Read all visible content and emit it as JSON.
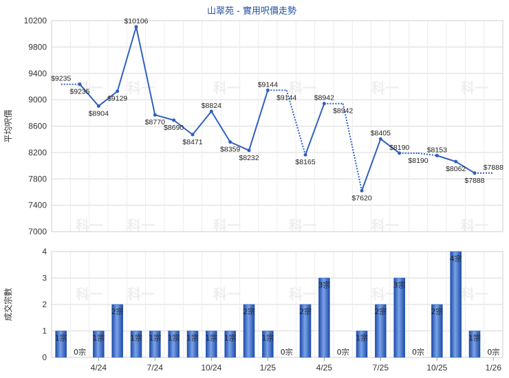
{
  "chart_data": [
    {
      "type": "line",
      "title": "山翠苑 - 實用呎價走勢",
      "ylabel": "平均呎價",
      "ylim": [
        7000,
        10200
      ],
      "yticks": [
        7000,
        7400,
        7800,
        8200,
        8600,
        9000,
        9400,
        9800,
        10200
      ],
      "grid": true,
      "line_color": "#2f5fbf",
      "points": [
        {
          "label": "$9235",
          "value": 9235,
          "filled": false
        },
        {
          "label": "$9235",
          "value": 9235,
          "filled": true
        },
        {
          "label": "$8904",
          "value": 8904,
          "filled": true
        },
        {
          "label": "$9129",
          "value": 9129,
          "filled": true
        },
        {
          "label": "$10106",
          "value": 10106,
          "filled": true
        },
        {
          "label": "$8770",
          "value": 8770,
          "filled": true
        },
        {
          "label": "$8690",
          "value": 8690,
          "filled": true
        },
        {
          "label": "$8471",
          "value": 8471,
          "filled": true
        },
        {
          "label": "$8824",
          "value": 8824,
          "filled": true
        },
        {
          "label": "$8359",
          "value": 8359,
          "filled": true
        },
        {
          "label": "$8232",
          "value": 8232,
          "filled": true
        },
        {
          "label": "$9144",
          "value": 9144,
          "filled": true
        },
        {
          "label": "$9144",
          "value": 9144,
          "filled": false
        },
        {
          "label": "$8165",
          "value": 8165,
          "filled": true
        },
        {
          "label": "$8942",
          "value": 8942,
          "filled": true
        },
        {
          "label": "$8942",
          "value": 8942,
          "filled": false
        },
        {
          "label": "$7620",
          "value": 7620,
          "filled": true
        },
        {
          "label": "$8405",
          "value": 8405,
          "filled": true
        },
        {
          "label": "$8190",
          "value": 8190,
          "filled": true
        },
        {
          "label": "$8190",
          "value": 8190,
          "filled": false
        },
        {
          "label": "$8153",
          "value": 8153,
          "filled": true
        },
        {
          "label": "$8062",
          "value": 8062,
          "filled": true
        },
        {
          "label": "$7888",
          "value": 7888,
          "filled": true
        },
        {
          "label": "$7888",
          "value": 7888,
          "filled": false
        }
      ]
    },
    {
      "type": "bar",
      "ylabel": "成交宗數",
      "ylim": [
        0,
        4
      ],
      "yticks": [
        0,
        1,
        2,
        3,
        4
      ],
      "grid": true,
      "bar_color": "#2f5fbf",
      "values": [
        1,
        0,
        1,
        2,
        1,
        1,
        1,
        1,
        1,
        1,
        2,
        1,
        0,
        2,
        3,
        0,
        1,
        2,
        3,
        0,
        2,
        4,
        1,
        0
      ],
      "value_labels": [
        "1宗",
        "0宗",
        "1宗",
        "2宗",
        "1宗",
        "1宗",
        "1宗",
        "1宗",
        "1宗",
        "1宗",
        "2宗",
        "1宗",
        "0宗",
        "2宗",
        "3宗",
        "0宗",
        "1宗",
        "2宗",
        "3宗",
        "0宗",
        "2宗",
        "4宗",
        "1宗",
        "0宗"
      ],
      "x_tick_labels": [
        {
          "index": 2,
          "text": "4/24"
        },
        {
          "index": 5,
          "text": "7/24"
        },
        {
          "index": 8,
          "text": "10/24"
        },
        {
          "index": 11,
          "text": "1/25"
        },
        {
          "index": 14,
          "text": "4/25"
        },
        {
          "index": 17,
          "text": "7/25"
        },
        {
          "index": 20,
          "text": "10/25"
        },
        {
          "index": 23,
          "text": "1/26"
        }
      ]
    }
  ],
  "watermark": "科一"
}
